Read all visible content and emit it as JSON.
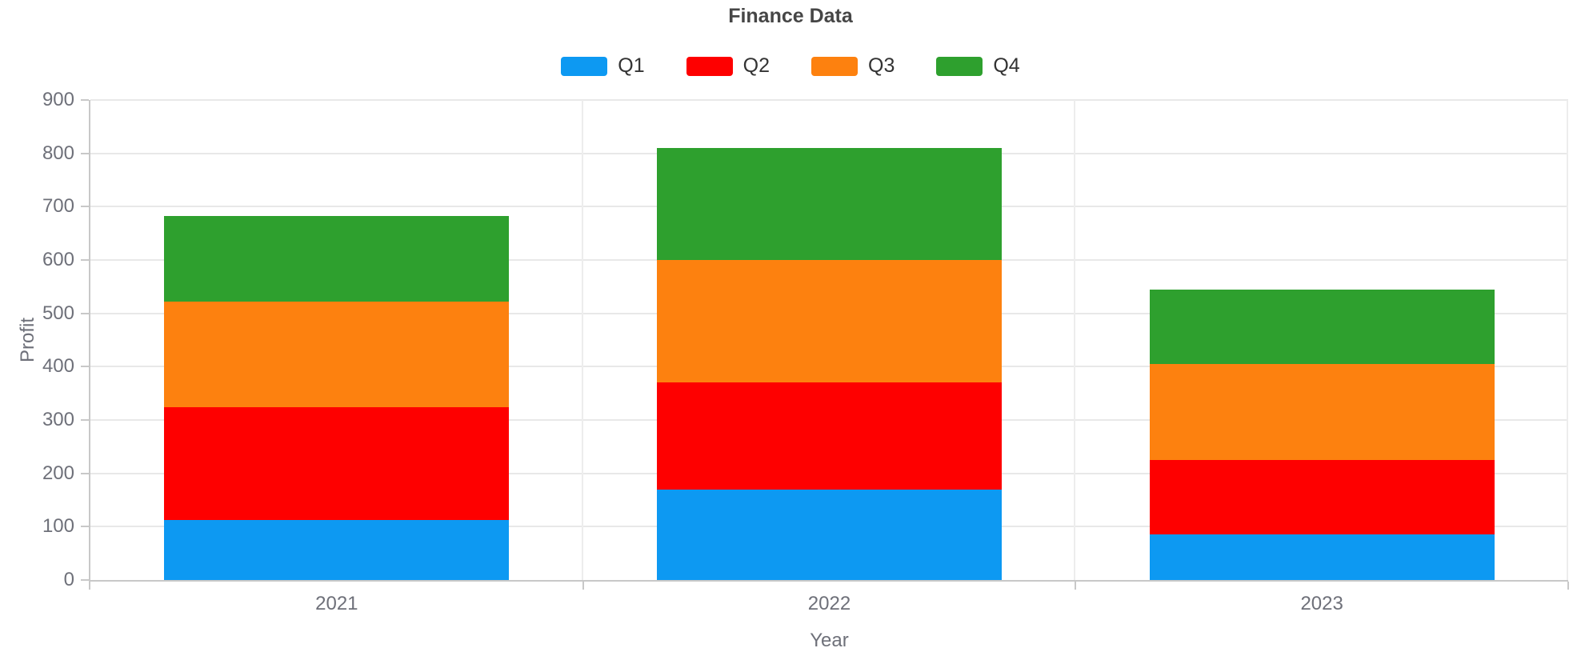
{
  "title": "Finance Data",
  "chart_data": {
    "type": "bar",
    "stacked": true,
    "title": "Finance Data",
    "categories": [
      "2021",
      "2022",
      "2023"
    ],
    "series": [
      {
        "name": "Q1",
        "color": "#0D99F2",
        "values": [
          112,
          170,
          85
        ]
      },
      {
        "name": "Q2",
        "color": "#FE0000",
        "values": [
          212,
          200,
          140
        ]
      },
      {
        "name": "Q3",
        "color": "#FD810F",
        "values": [
          198,
          230,
          180
        ]
      },
      {
        "name": "Q4",
        "color": "#2EA02E",
        "values": [
          160,
          210,
          140
        ]
      }
    ],
    "stack_totals": [
      682,
      810,
      545
    ],
    "xlabel": "Year",
    "ylabel": "Profit",
    "ylim": [
      0,
      900
    ],
    "ytick_step": 100,
    "ytick_labels": [
      "0",
      "100",
      "200",
      "300",
      "400",
      "500",
      "600",
      "700",
      "800",
      "900"
    ],
    "legend_position": "top-center",
    "legend_labels": [
      "Q1",
      "Q2",
      "Q3",
      "Q4"
    ],
    "grid": true
  },
  "styles": {
    "background": "#FFFFFF",
    "title_color": "#464646",
    "axis_label_color": "#6E7079",
    "legend_text_color": "#333333",
    "grid_line_color": "#E8E8E8",
    "axis_line_color": "#C8C8C8"
  }
}
